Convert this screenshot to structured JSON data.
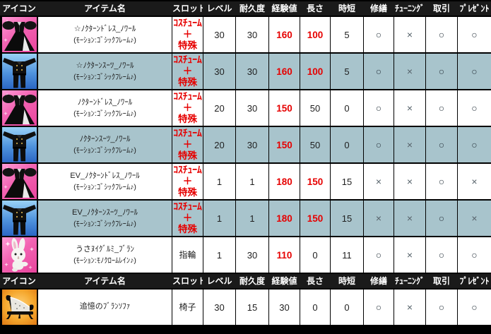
{
  "table": {
    "columns": [
      "アイコン",
      "アイテム名",
      "スロット",
      "レベル",
      "耐久度",
      "経験値",
      "長さ",
      "時短",
      "修繕",
      "ﾁｭｰﾆﾝｸﾞ",
      "取引",
      "ﾌﾟﾚｾﾞﾝﾄ"
    ],
    "header_repeat_before_row": 7,
    "rows": [
      {
        "icon": "dress",
        "name": "☆ﾉｸﾀｰﾝﾄﾞﾚｽ_ﾉﾜｰﾙ",
        "motion": "(ﾓｰｼｮﾝ:ｺﾞｼｯｸﾌﾚｰﾑ♪)",
        "slot": "ｺｽﾁｭｰﾑ\n＋\n特殊",
        "slot_highlight": true,
        "shaded": false,
        "level": "30",
        "durability": "30",
        "exp": "160",
        "exp_highlight": true,
        "length": "100",
        "length_highlight": true,
        "time_reduction": "5",
        "repair": "○",
        "tuning": "×",
        "trade": "○",
        "present": "○"
      },
      {
        "icon": "suit",
        "name": "☆ﾉｸﾀｰﾝｽｰﾂ_ﾉﾜｰﾙ",
        "motion": "(ﾓｰｼｮﾝ:ｺﾞｼｯｸﾌﾚｰﾑ♪)",
        "slot": "ｺｽﾁｭｰﾑ\n＋\n特殊",
        "slot_highlight": true,
        "shaded": true,
        "level": "30",
        "durability": "30",
        "exp": "160",
        "exp_highlight": true,
        "length": "100",
        "length_highlight": true,
        "time_reduction": "5",
        "repair": "○",
        "tuning": "×",
        "trade": "○",
        "present": "○"
      },
      {
        "icon": "dress",
        "name": "ﾉｸﾀｰﾝﾄﾞﾚｽ_ﾉﾜｰﾙ",
        "motion": "(ﾓｰｼｮﾝ:ｺﾞｼｯｸﾌﾚｰﾑ♪)",
        "slot": "ｺｽﾁｭｰﾑ\n＋\n特殊",
        "slot_highlight": true,
        "shaded": false,
        "level": "20",
        "durability": "30",
        "exp": "150",
        "exp_highlight": true,
        "length": "50",
        "length_highlight": false,
        "time_reduction": "0",
        "repair": "○",
        "tuning": "×",
        "trade": "○",
        "present": "○"
      },
      {
        "icon": "suit",
        "name": "ﾉｸﾀｰﾝｽｰﾂ_ﾉﾜｰﾙ",
        "motion": "(ﾓｰｼｮﾝ:ｺﾞｼｯｸﾌﾚｰﾑ♪)",
        "slot": "ｺｽﾁｭｰﾑ\n＋\n特殊",
        "slot_highlight": true,
        "shaded": true,
        "level": "20",
        "durability": "30",
        "exp": "150",
        "exp_highlight": true,
        "length": "50",
        "length_highlight": false,
        "time_reduction": "0",
        "repair": "○",
        "tuning": "×",
        "trade": "○",
        "present": "○"
      },
      {
        "icon": "dress",
        "name": "EV_ﾉｸﾀｰﾝﾄﾞﾚｽ_ﾉﾜｰﾙ",
        "motion": "(ﾓｰｼｮﾝ:ｺﾞｼｯｸﾌﾚｰﾑ♪)",
        "slot": "ｺｽﾁｭｰﾑ\n＋\n特殊",
        "slot_highlight": true,
        "shaded": false,
        "level": "1",
        "durability": "1",
        "exp": "180",
        "exp_highlight": true,
        "length": "150",
        "length_highlight": true,
        "time_reduction": "15",
        "repair": "×",
        "tuning": "×",
        "trade": "○",
        "present": "×"
      },
      {
        "icon": "suit",
        "name": "EV_ﾉｸﾀｰﾝｽｰﾂ_ﾉﾜｰﾙ",
        "motion": "(ﾓｰｼｮﾝ:ｺﾞｼｯｸﾌﾚｰﾑ♪)",
        "slot": "ｺｽﾁｭｰﾑ\n＋\n特殊",
        "slot_highlight": true,
        "shaded": true,
        "level": "1",
        "durability": "1",
        "exp": "180",
        "exp_highlight": true,
        "length": "150",
        "length_highlight": true,
        "time_reduction": "15",
        "repair": "×",
        "tuning": "×",
        "trade": "○",
        "present": "×"
      },
      {
        "icon": "rabbit",
        "name": "うさﾇｲｸﾞﾙﾐ_ﾌﾞﾗﾝ",
        "motion": "(ﾓｰｼｮﾝ:ﾓﾉｸﾛｰﾑﾚｲﾝ♪)",
        "slot": "指輪",
        "slot_highlight": false,
        "shaded": false,
        "level": "1",
        "durability": "30",
        "exp": "110",
        "exp_highlight": true,
        "length": "0",
        "length_highlight": false,
        "time_reduction": "11",
        "repair": "○",
        "tuning": "×",
        "trade": "○",
        "present": "○"
      },
      {
        "icon": "sofa",
        "name": "追憶のﾌﾞﾗﾝｿﾌｧ",
        "motion": "",
        "slot": "椅子",
        "slot_highlight": false,
        "shaded": false,
        "level": "30",
        "durability": "15",
        "exp": "30",
        "exp_highlight": false,
        "length": "0",
        "length_highlight": false,
        "time_reduction": "0",
        "repair": "○",
        "tuning": "×",
        "trade": "○",
        "present": "○"
      }
    ]
  },
  "colors": {
    "header_bg": "#1a1a1a",
    "header_text": "#ffffff",
    "row_shaded": "#a8c4cc",
    "row_plain": "#ffffff",
    "highlight_red": "#e60000",
    "cell_text": "#1f1f1f",
    "circle_dark": "#2b3740",
    "cross_gray": "#56626a",
    "border": "#000000"
  }
}
